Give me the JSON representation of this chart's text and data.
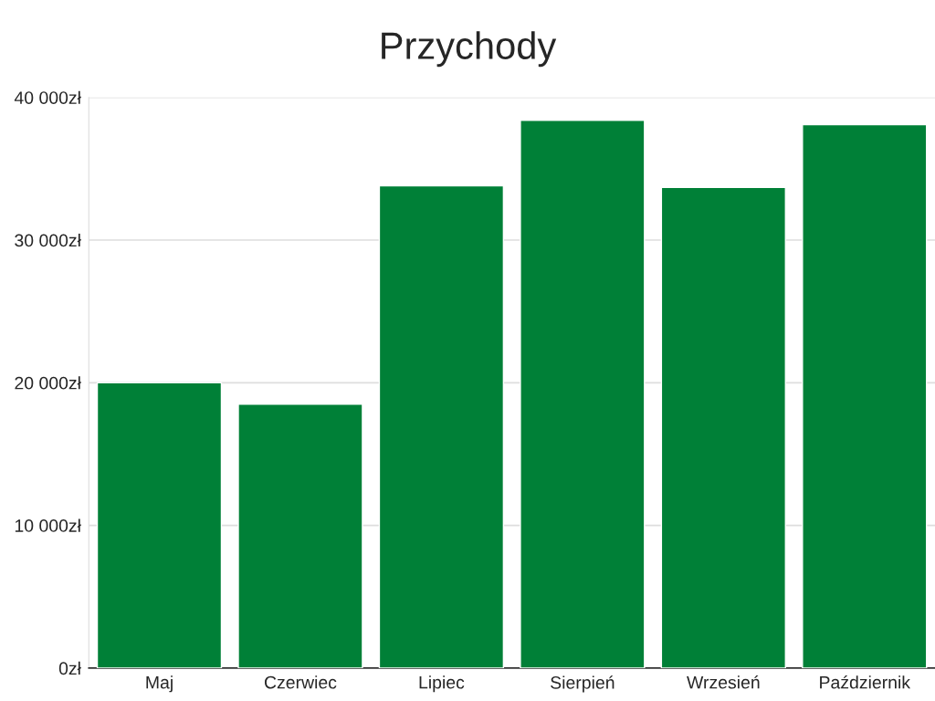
{
  "chart_data": {
    "type": "bar",
    "title": "Przychody",
    "categories": [
      "Maj",
      "Czerwiec",
      "Lipiec",
      "Sierpień",
      "Wrzesień",
      "Październik"
    ],
    "values": [
      20000,
      18500,
      33800,
      38400,
      33700,
      38100
    ],
    "color": "#008037",
    "ylim": [
      0,
      40000
    ],
    "yticks": [
      {
        "value": 0,
        "label": "0zł"
      },
      {
        "value": 10000,
        "label": "10 000zł"
      },
      {
        "value": 20000,
        "label": "20 000zł"
      },
      {
        "value": 30000,
        "label": "30 000zł"
      },
      {
        "value": 40000,
        "label": "40 000zł"
      }
    ],
    "grid": "y"
  }
}
